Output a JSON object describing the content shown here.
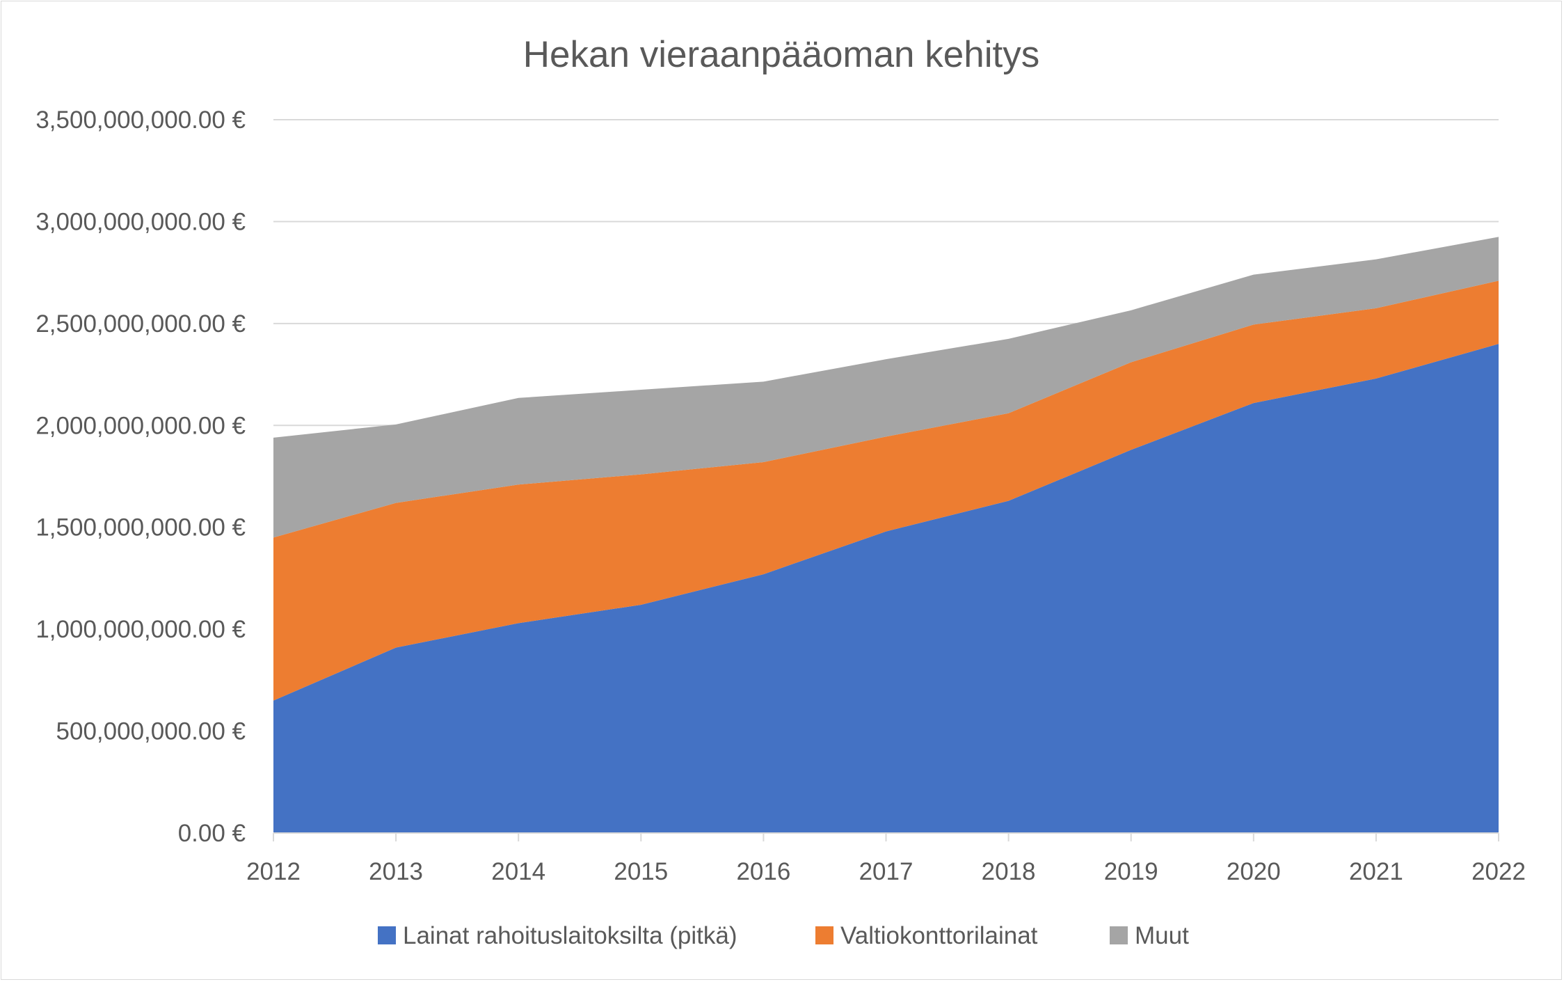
{
  "chart_data": {
    "type": "area",
    "stacked": true,
    "title": "Hekan vieraanpääoman kehitys",
    "xlabel": "",
    "ylabel": "",
    "x": [
      "2012",
      "2013",
      "2014",
      "2015",
      "2016",
      "2017",
      "2018",
      "2019",
      "2020",
      "2021",
      "2022"
    ],
    "ylim": [
      0,
      3500000000
    ],
    "yticks": [
      0,
      500000000,
      1000000000,
      1500000000,
      2000000000,
      2500000000,
      3000000000,
      3500000000
    ],
    "ytick_labels": [
      "0.00 €",
      "500,000,000.00 €",
      "1,000,000,000.00 €",
      "1,500,000,000.00 €",
      "2,000,000,000.00 €",
      "2,500,000,000.00 €",
      "3,000,000,000.00 €",
      "3,500,000,000.00 €"
    ],
    "grid": true,
    "legend_position": "bottom",
    "series": [
      {
        "name": "Lainat rahoituslaitoksilta (pitkä)",
        "color": "#4472C4",
        "values": [
          650000000,
          910000000,
          1030000000,
          1120000000,
          1270000000,
          1480000000,
          1630000000,
          1880000000,
          2110000000,
          2230000000,
          2400000000
        ]
      },
      {
        "name": "Valtiokonttorilainat",
        "color": "#ED7D31",
        "values": [
          800000000,
          710000000,
          680000000,
          640000000,
          550000000,
          465000000,
          430000000,
          430000000,
          385000000,
          345000000,
          310000000
        ]
      },
      {
        "name": "Muut",
        "color": "#A5A5A5",
        "values": [
          490000000,
          385000000,
          425000000,
          415000000,
          395000000,
          380000000,
          365000000,
          255000000,
          245000000,
          240000000,
          215000000
        ]
      }
    ]
  }
}
